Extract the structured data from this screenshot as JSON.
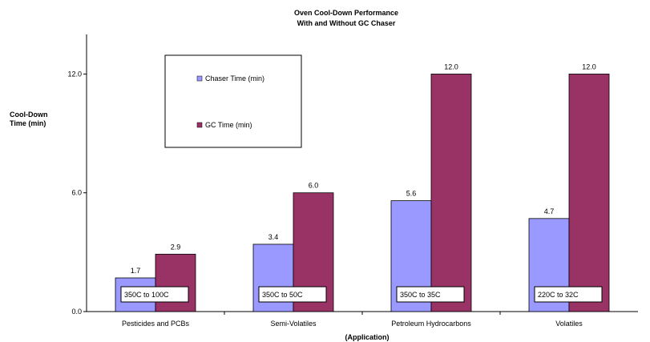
{
  "chart_data": {
    "type": "bar",
    "title": "Oven Cool-Down Performance",
    "subtitle": "With and Without GC Chaser",
    "xlabel": "(Application)",
    "ylabel": [
      "Cool-Down",
      "Time (min)"
    ],
    "ylim": [
      0,
      14
    ],
    "yticks": [
      "0.0",
      "6.0",
      "12.0"
    ],
    "ytick_values": [
      0,
      6,
      12
    ],
    "grid": false,
    "legend_position": "top-left",
    "categories": [
      "Pesticides and PCBs",
      "Semi-Volatiles",
      "Petroleum Hydrocarbons",
      "Volatiles"
    ],
    "range_labels": [
      "350C to 100C",
      "350C to 50C",
      "350C to 35C",
      "220C to 32C"
    ],
    "series": [
      {
        "name": "Chaser Time (min)",
        "color": "#9999ff",
        "values": [
          1.7,
          3.4,
          5.6,
          4.7
        ],
        "labels": [
          "1.7",
          "3.4",
          "5.6",
          "4.7"
        ]
      },
      {
        "name": "GC Time (min)",
        "color": "#993366",
        "values": [
          2.9,
          6.0,
          12.0,
          12.0
        ],
        "labels": [
          "2.9",
          "6.0",
          "12.0",
          "12.0"
        ]
      }
    ]
  }
}
